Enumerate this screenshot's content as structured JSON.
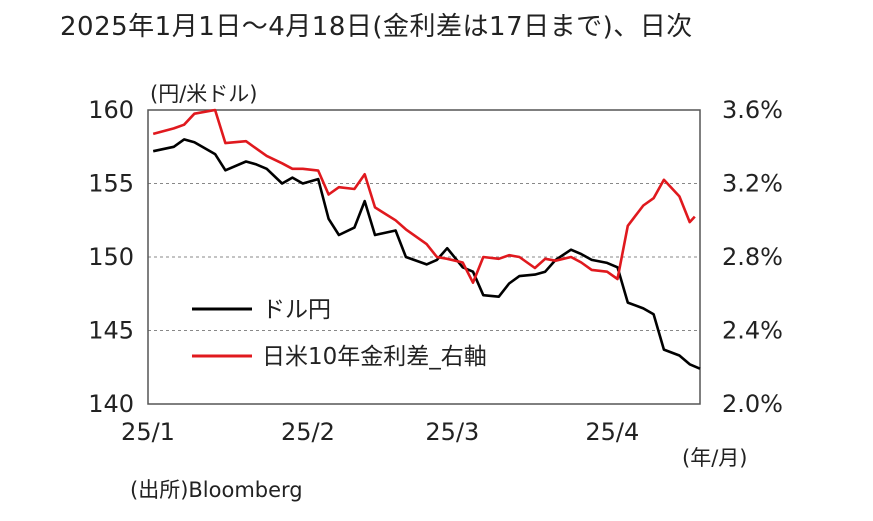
{
  "title": "2025年1月1日～4月18日(金利差は17日まで)、日次",
  "left_axis_unit": "(円/米ドル)",
  "x_axis_unit": "(年/月)",
  "source": "(出所)Bloomberg",
  "chart_data": {
    "type": "line",
    "title": "2025年1月1日～4月18日(金利差は17日まで)、日次",
    "xlabel": "(年/月)",
    "ylabel": "(円/米ドル)",
    "x_ticks": [
      "25/1",
      "25/2",
      "25/3",
      "25/4"
    ],
    "y_left": {
      "min": 140,
      "max": 160,
      "ticks": [
        "140",
        "145",
        "150",
        "155",
        "160"
      ]
    },
    "y_right": {
      "min": 2.0,
      "max": 3.6,
      "ticks": [
        "2.0%",
        "2.4%",
        "2.8%",
        "3.2%",
        "3.6%"
      ]
    },
    "grid": "horizontal dashed",
    "legend_position": "bottom-left",
    "series": [
      {
        "name": "ドル円",
        "axis": "left",
        "color": "#000000",
        "x": [
          "2025-01-02",
          "2025-01-06",
          "2025-01-08",
          "2025-01-10",
          "2025-01-14",
          "2025-01-16",
          "2025-01-20",
          "2025-01-22",
          "2025-01-24",
          "2025-01-27",
          "2025-01-29",
          "2025-01-31",
          "2025-02-03",
          "2025-02-05",
          "2025-02-07",
          "2025-02-10",
          "2025-02-12",
          "2025-02-14",
          "2025-02-18",
          "2025-02-20",
          "2025-02-24",
          "2025-02-26",
          "2025-02-28",
          "2025-03-03",
          "2025-03-05",
          "2025-03-07",
          "2025-03-10",
          "2025-03-12",
          "2025-03-14",
          "2025-03-17",
          "2025-03-19",
          "2025-03-21",
          "2025-03-24",
          "2025-03-26",
          "2025-03-28",
          "2025-03-31",
          "2025-04-02",
          "2025-04-04",
          "2025-04-07",
          "2025-04-09",
          "2025-04-11",
          "2025-04-14",
          "2025-04-16",
          "2025-04-18"
        ],
        "values": [
          157.2,
          157.5,
          158.0,
          157.8,
          157.0,
          155.9,
          156.5,
          156.3,
          156.0,
          155.0,
          155.4,
          155.0,
          155.3,
          152.6,
          151.5,
          152.0,
          153.8,
          151.5,
          151.8,
          150.0,
          149.5,
          149.8,
          150.6,
          149.3,
          149.0,
          147.4,
          147.3,
          148.2,
          148.7,
          148.8,
          149.0,
          149.8,
          150.5,
          150.2,
          149.8,
          149.6,
          149.3,
          146.9,
          146.5,
          146.1,
          143.7,
          143.3,
          142.7,
          142.4
        ]
      },
      {
        "name": "日米10年金利差_右軸",
        "axis": "right",
        "color": "#e0191e",
        "x": [
          "2025-01-02",
          "2025-01-06",
          "2025-01-08",
          "2025-01-10",
          "2025-01-14",
          "2025-01-16",
          "2025-01-20",
          "2025-01-22",
          "2025-01-24",
          "2025-01-27",
          "2025-01-29",
          "2025-01-31",
          "2025-02-03",
          "2025-02-05",
          "2025-02-07",
          "2025-02-10",
          "2025-02-12",
          "2025-02-14",
          "2025-02-18",
          "2025-02-20",
          "2025-02-24",
          "2025-02-26",
          "2025-02-28",
          "2025-03-03",
          "2025-03-05",
          "2025-03-07",
          "2025-03-10",
          "2025-03-12",
          "2025-03-14",
          "2025-03-17",
          "2025-03-19",
          "2025-03-21",
          "2025-03-24",
          "2025-03-26",
          "2025-03-28",
          "2025-03-31",
          "2025-04-02",
          "2025-04-04",
          "2025-04-07",
          "2025-04-09",
          "2025-04-11",
          "2025-04-14",
          "2025-04-16",
          "2025-04-17"
        ],
        "values": [
          3.47,
          3.5,
          3.52,
          3.58,
          3.6,
          3.42,
          3.43,
          3.39,
          3.35,
          3.31,
          3.28,
          3.28,
          3.27,
          3.14,
          3.18,
          3.17,
          3.25,
          3.07,
          3.0,
          2.95,
          2.87,
          2.8,
          2.79,
          2.77,
          2.66,
          2.8,
          2.79,
          2.81,
          2.8,
          2.74,
          2.79,
          2.78,
          2.8,
          2.77,
          2.73,
          2.72,
          2.68,
          2.97,
          3.08,
          3.12,
          3.22,
          3.13,
          2.99,
          3.02
        ]
      }
    ]
  }
}
